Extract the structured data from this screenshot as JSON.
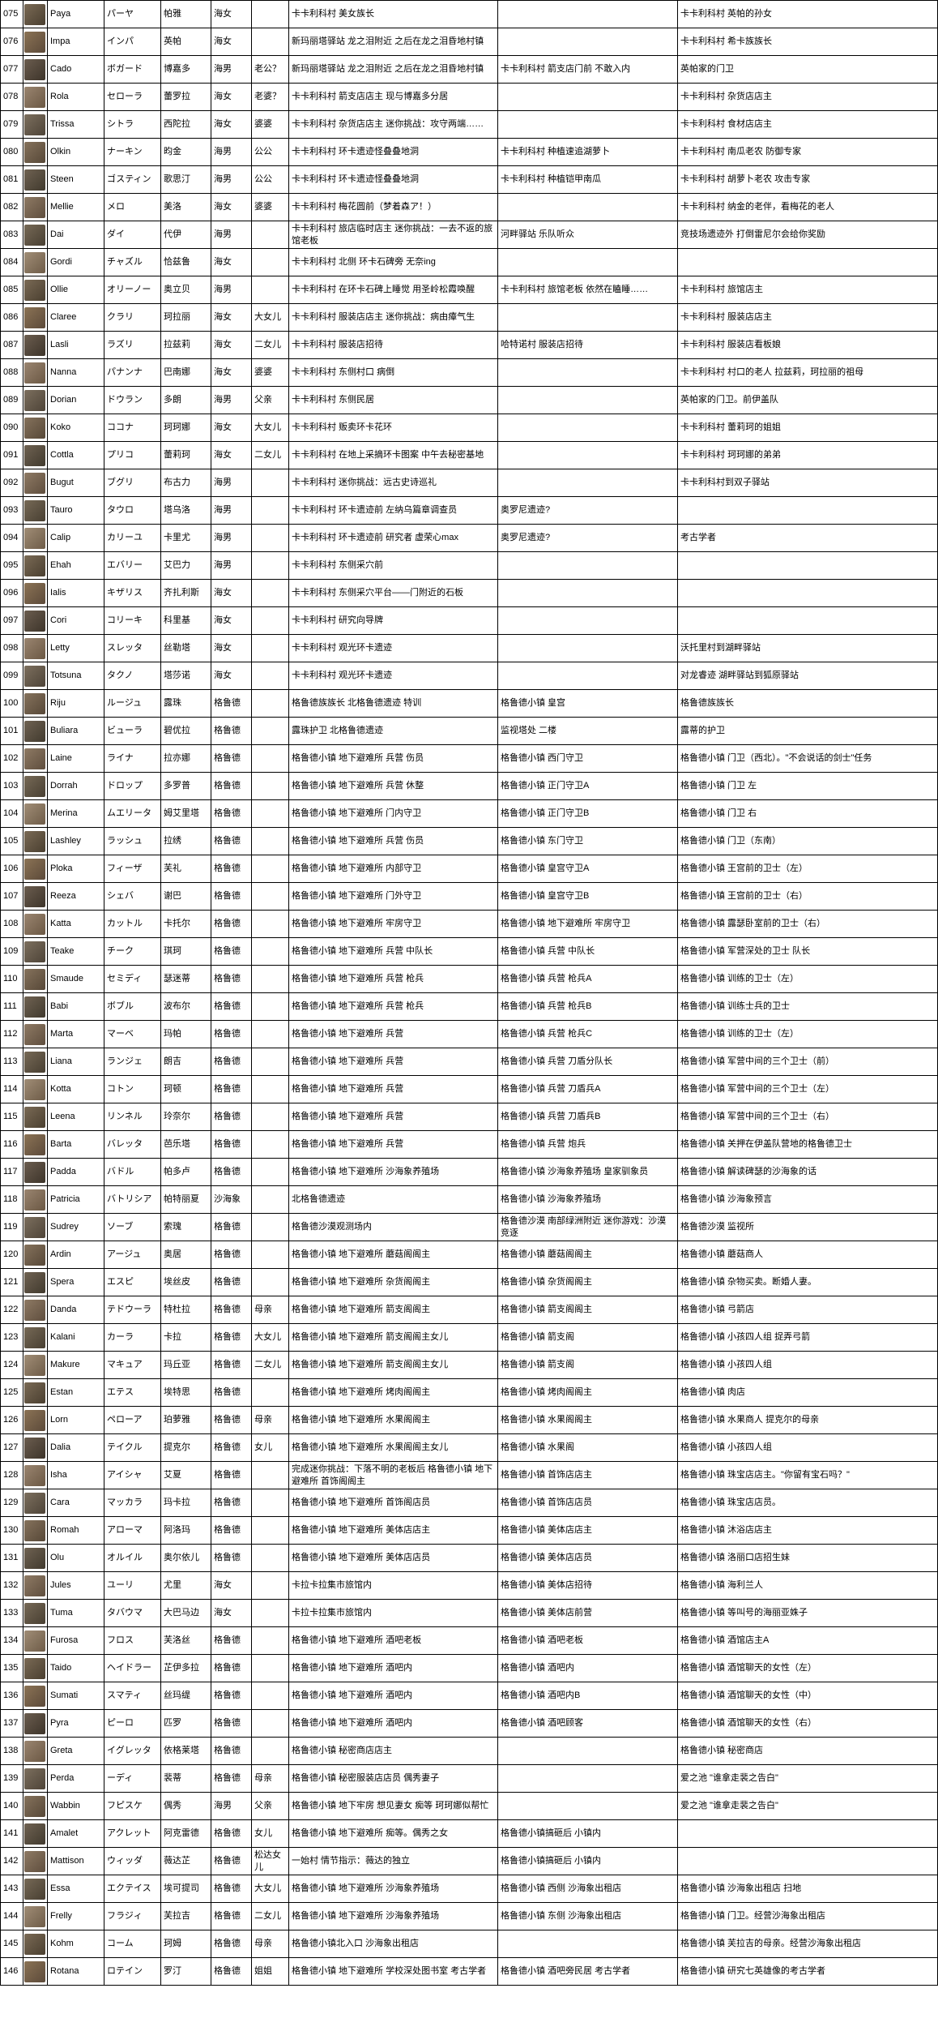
{
  "rows": [
    {
      "n": "075",
      "en": "Paya",
      "jp": "パーヤ",
      "cn": "帕雅",
      "race": "海女",
      "rel": "",
      "l1": "卡卡利科村 美女族长",
      "l2": "",
      "note": "卡卡利科村 英帕的孙女"
    },
    {
      "n": "076",
      "en": "Impa",
      "jp": "インパ",
      "cn": "英帕",
      "race": "海女",
      "rel": "",
      "l1": "新玛丽塔驿站 龙之泪附近 之后在龙之泪昏地村镇",
      "l2": "",
      "note": "卡卡利科村 希卡族族长"
    },
    {
      "n": "077",
      "en": "Cado",
      "jp": "ボガード",
      "cn": "博嘉多",
      "race": "海男",
      "rel": "老公？",
      "l1": "新玛丽塔驿站 龙之泪附近 之后在龙之泪昏地村镇",
      "l2": "卡卡利科村 箭支店门前 不敢入内",
      "note": "英帕家的门卫"
    },
    {
      "n": "078",
      "en": "Rola",
      "jp": "セローラ",
      "cn": "蕾罗拉",
      "race": "海女",
      "rel": "老婆？",
      "l1": "卡卡利科村 箭支店店主 现与博嘉多分居",
      "l2": "",
      "note": "卡卡利科村 杂货店店主"
    },
    {
      "n": "079",
      "en": "Trissa",
      "jp": "シトラ",
      "cn": "西陀拉",
      "race": "海女",
      "rel": "婆婆",
      "l1": "卡卡利科村 杂货店店主 迷你挑战：攻守两端……",
      "l2": "",
      "note": "卡卡利科村 食材店店主"
    },
    {
      "n": "080",
      "en": "Olkin",
      "jp": "ナーキン",
      "cn": "昀金",
      "race": "海男",
      "rel": "公公",
      "l1": "卡卡利科村 环卡遗迹怪叠叠地洞",
      "l2": "卡卡利科村 种植速追湖萝卜",
      "note": "卡卡利科村 南瓜老农 防御专家"
    },
    {
      "n": "081",
      "en": "Steen",
      "jp": "ゴスティン",
      "cn": "歌思汀",
      "race": "海男",
      "rel": "公公",
      "l1": "卡卡利科村 环卡遗迹怪叠叠地洞",
      "l2": "卡卡利科村 种植铠甲南瓜",
      "note": "卡卡利科村 胡萝卜老农 攻击专家"
    },
    {
      "n": "082",
      "en": "Mellie",
      "jp": "メロ",
      "cn": "美洛",
      "race": "海女",
      "rel": "婆婆",
      "l1": "卡卡利科村 梅花圆前（梦着森ア！）",
      "l2": "",
      "note": "卡卡利科村 纳金的老伴，看梅花的老人"
    },
    {
      "n": "083",
      "en": "Dai",
      "jp": "ダイ",
      "cn": "代伊",
      "race": "海男",
      "rel": "",
      "l1": "卡卡利科村 旅店临时店主 迷你挑战：一去不返的旅馆老板",
      "l2": "河畔驿站 乐队听众",
      "note": "竞技场遗迹外 打倒雷尼尔会给你奖励"
    },
    {
      "n": "084",
      "en": "Gordi",
      "jp": "チャズル",
      "cn": "恰兹鲁",
      "race": "海女",
      "rel": "",
      "l1": "卡卡利科村 北侧 环卡石碑旁 无奈ing",
      "l2": "",
      "note": ""
    },
    {
      "n": "085",
      "en": "Ollie",
      "jp": "オリーノー",
      "cn": "奥立贝",
      "race": "海男",
      "rel": "",
      "l1": "卡卡利科村 在环卡石碑上睡觉 用圣岭松霞唤醒",
      "l2": "卡卡利科村 旅馆老板 依然在瞌睡……",
      "note": "卡卡利科村 旅馆店主"
    },
    {
      "n": "086",
      "en": "Claree",
      "jp": "クラリ",
      "cn": "珂拉丽",
      "race": "海女",
      "rel": "大女儿",
      "l1": "卡卡利科村 服装店店主 迷你挑战：病由瘴气生",
      "l2": "",
      "note": "卡卡利科村 服装店店主"
    },
    {
      "n": "087",
      "en": "Lasli",
      "jp": "ラズリ",
      "cn": "拉兹莉",
      "race": "海女",
      "rel": "二女儿",
      "l1": "卡卡利科村 服装店招待",
      "l2": "哈特诺村 服装店招待",
      "note": "卡卡利科村 服装店看板娘"
    },
    {
      "n": "088",
      "en": "Nanna",
      "jp": "パナンナ",
      "cn": "巴南娜",
      "race": "海女",
      "rel": "婆婆",
      "l1": "卡卡利科村 东侧村口 病倒",
      "l2": "",
      "note": "卡卡利科村 村口的老人 拉兹莉，珂拉丽的祖母"
    },
    {
      "n": "089",
      "en": "Dorian",
      "jp": "ドウラン",
      "cn": "多朗",
      "race": "海男",
      "rel": "父亲",
      "l1": "卡卡利科村 东侧民居",
      "l2": "",
      "note": "英帕家的门卫。前伊盖队"
    },
    {
      "n": "090",
      "en": "Koko",
      "jp": "ココナ",
      "cn": "珂珂娜",
      "race": "海女",
      "rel": "大女儿",
      "l1": "卡卡利科村 贩卖环卡花环",
      "l2": "",
      "note": "卡卡利科村 蕾莉珂的姐姐"
    },
    {
      "n": "091",
      "en": "Cottla",
      "jp": "プリコ",
      "cn": "蕾莉珂",
      "race": "海女",
      "rel": "二女儿",
      "l1": "卡卡利科村 在地上采摘环卡图案 中午去秘密基地",
      "l2": "",
      "note": "卡卡利科村 珂珂娜的弟弟"
    },
    {
      "n": "092",
      "en": "Bugut",
      "jp": "ブグリ",
      "cn": "布古力",
      "race": "海男",
      "rel": "",
      "l1": "卡卡利科村 迷你挑战：远古史诗巡礼",
      "l2": "",
      "note": "卡卡利科村到双子驿站"
    },
    {
      "n": "093",
      "en": "Tauro",
      "jp": "タウロ",
      "cn": "塔乌洛",
      "race": "海男",
      "rel": "",
      "l1": "卡卡利科村 环卡遗迹前 左纳乌篇章调查员",
      "l2": "奥罗尼遗迹?",
      "note": ""
    },
    {
      "n": "094",
      "en": "Calip",
      "jp": "カリーユ",
      "cn": "卡里尤",
      "race": "海男",
      "rel": "",
      "l1": "卡卡利科村 环卡遗迹前 研究者 虚荣心max",
      "l2": "奥罗尼遗迹?",
      "note": "考古学者"
    },
    {
      "n": "095",
      "en": "Ehah",
      "jp": "エバリー",
      "cn": "艾巴力",
      "race": "海男",
      "rel": "",
      "l1": "卡卡利科村 东侧采穴前",
      "l2": "",
      "note": ""
    },
    {
      "n": "096",
      "en": "Ialis",
      "jp": "キザリス",
      "cn": "齐扎利斯",
      "race": "海女",
      "rel": "",
      "l1": "卡卡利科村 东侧采穴平台――门附近的石板",
      "l2": "",
      "note": ""
    },
    {
      "n": "097",
      "en": "Cori",
      "jp": "コリーキ",
      "cn": "科里基",
      "race": "海女",
      "rel": "",
      "l1": "卡卡利科村 研究向导牌",
      "l2": "",
      "note": ""
    },
    {
      "n": "098",
      "en": "Letty",
      "jp": "スレッタ",
      "cn": "丝勒塔",
      "race": "海女",
      "rel": "",
      "l1": "卡卡利科村 观光环卡遗迹",
      "l2": "",
      "note": "沃托里村到湖畔驿站"
    },
    {
      "n": "099",
      "en": "Totsuna",
      "jp": "タクノ",
      "cn": "塔莎诺",
      "race": "海女",
      "rel": "",
      "l1": "卡卡利科村 观光环卡遗迹",
      "l2": "",
      "note": "对龙睿迹 湖畔驿站到狐原驿站"
    },
    {
      "n": "100",
      "en": "Riju",
      "jp": "ルージュ",
      "cn": "露珠",
      "race": "格鲁德",
      "rel": "",
      "l1": "格鲁德族族长 北格鲁德遗迹 特训",
      "l2": "格鲁德小镇 皇宫",
      "note": "格鲁德族族长"
    },
    {
      "n": "101",
      "en": "Buliara",
      "jp": "ビューラ",
      "cn": "碧优拉",
      "race": "格鲁德",
      "rel": "",
      "l1": "露珠护卫 北格鲁德遗迹",
      "l2": "监视塔处 二楼",
      "note": "露蒂的护卫"
    },
    {
      "n": "102",
      "en": "Laine",
      "jp": "ライナ",
      "cn": "拉亦娜",
      "race": "格鲁德",
      "rel": "",
      "l1": "格鲁德小镇 地下避难所 兵营 伤员",
      "l2": "格鲁德小镇 西门守卫",
      "note": "格鲁德小镇 门卫（西北）。\"不会说话的剑士\"任务"
    },
    {
      "n": "103",
      "en": "Dorrah",
      "jp": "ドロップ",
      "cn": "多罗普",
      "race": "格鲁德",
      "rel": "",
      "l1": "格鲁德小镇 地下避难所 兵营 休整",
      "l2": "格鲁德小镇 正门守卫A",
      "note": "格鲁德小镇 门卫 左"
    },
    {
      "n": "104",
      "en": "Merina",
      "jp": "ムエリータ",
      "cn": "姆艾里塔",
      "race": "格鲁德",
      "rel": "",
      "l1": "格鲁德小镇 地下避难所 门内守卫",
      "l2": "格鲁德小镇 正门守卫B",
      "note": "格鲁德小镇 门卫 右"
    },
    {
      "n": "105",
      "en": "Lashley",
      "jp": "ラッシュ",
      "cn": "拉绣",
      "race": "格鲁德",
      "rel": "",
      "l1": "格鲁德小镇 地下避难所 兵营 伤员",
      "l2": "格鲁德小镇 东门守卫",
      "note": "格鲁德小镇 门卫（东南）"
    },
    {
      "n": "106",
      "en": "Ploka",
      "jp": "フィーザ",
      "cn": "芙礼",
      "race": "格鲁德",
      "rel": "",
      "l1": "格鲁德小镇 地下避难所 内部守卫",
      "l2": "格鲁德小镇 皇宫守卫A",
      "note": "格鲁德小镇 王宫前的卫士（左）"
    },
    {
      "n": "107",
      "en": "Reeza",
      "jp": "シェバ",
      "cn": "谢巴",
      "race": "格鲁德",
      "rel": "",
      "l1": "格鲁德小镇 地下避难所 门外守卫",
      "l2": "格鲁德小镇 皇宫守卫B",
      "note": "格鲁德小镇 王宫前的卫士（右）"
    },
    {
      "n": "108",
      "en": "Katta",
      "jp": "カットル",
      "cn": "卡托尔",
      "race": "格鲁德",
      "rel": "",
      "l1": "格鲁德小镇 地下避难所 牢房守卫",
      "l2": "格鲁德小镇 地下避难所 牢房守卫",
      "note": "格鲁德小镇 露瑟卧室前的卫士（右）"
    },
    {
      "n": "109",
      "en": "Teake",
      "jp": "チーク",
      "cn": "琪珂",
      "race": "格鲁德",
      "rel": "",
      "l1": "格鲁德小镇 地下避难所 兵营 中队长",
      "l2": "格鲁德小镇 兵营 中队长",
      "note": "格鲁德小镇 军营深处的卫士 队长"
    },
    {
      "n": "110",
      "en": "Smaude",
      "jp": "セミディ",
      "cn": "瑟迷蒂",
      "race": "格鲁德",
      "rel": "",
      "l1": "格鲁德小镇 地下避难所 兵营 枪兵",
      "l2": "格鲁德小镇 兵营 枪兵A",
      "note": "格鲁德小镇 训练的卫士（左）"
    },
    {
      "n": "111",
      "en": "Babi",
      "jp": "ボブル",
      "cn": "波布尔",
      "race": "格鲁德",
      "rel": "",
      "l1": "格鲁德小镇 地下避难所 兵营 枪兵",
      "l2": "格鲁德小镇 兵营 枪兵B",
      "note": "格鲁德小镇 训练士兵的卫士"
    },
    {
      "n": "112",
      "en": "Marta",
      "jp": "マーベ",
      "cn": "玛帕",
      "race": "格鲁德",
      "rel": "",
      "l1": "格鲁德小镇 地下避难所 兵营",
      "l2": "格鲁德小镇 兵营 枪兵C",
      "note": "格鲁德小镇 训练的卫士（左）"
    },
    {
      "n": "113",
      "en": "Liana",
      "jp": "ランジェ",
      "cn": "朗吉",
      "race": "格鲁德",
      "rel": "",
      "l1": "格鲁德小镇 地下避难所 兵营",
      "l2": "格鲁德小镇 兵营 刀盾分队长",
      "note": "格鲁德小镇 军营中间的三个卫士（前）"
    },
    {
      "n": "114",
      "en": "Kotta",
      "jp": "コトン",
      "cn": "珂顿",
      "race": "格鲁德",
      "rel": "",
      "l1": "格鲁德小镇 地下避难所 兵营",
      "l2": "格鲁德小镇 兵营 刀盾兵A",
      "note": "格鲁德小镇 军营中间的三个卫士（左）"
    },
    {
      "n": "115",
      "en": "Leena",
      "jp": "リンネル",
      "cn": "玲奈尔",
      "race": "格鲁德",
      "rel": "",
      "l1": "格鲁德小镇 地下避难所 兵营",
      "l2": "格鲁德小镇 兵营 刀盾兵B",
      "note": "格鲁德小镇 军营中间的三个卫士（右）"
    },
    {
      "n": "116",
      "en": "Barta",
      "jp": "バレッタ",
      "cn": "芭乐塔",
      "race": "格鲁德",
      "rel": "",
      "l1": "格鲁德小镇 地下避难所 兵营",
      "l2": "格鲁德小镇 兵营 炮兵",
      "note": "格鲁德小镇 关押在伊盖队营地的格鲁德卫士"
    },
    {
      "n": "117",
      "en": "Padda",
      "jp": "バドル",
      "cn": "帕多卢",
      "race": "格鲁德",
      "rel": "",
      "l1": "格鲁德小镇 地下避难所 沙海象养殖场",
      "l2": "格鲁德小镇 沙海象养殖场 皇家驯象员",
      "note": "格鲁德小镇 解读碑瑟的沙海象的话"
    },
    {
      "n": "118",
      "en": "Patricia",
      "jp": "バトリシア",
      "cn": "帕特丽夏",
      "race": "沙海象",
      "rel": "",
      "l1": "北格鲁德遗迹",
      "l2": "格鲁德小镇 沙海象养殖场",
      "note": "格鲁德小镇 沙海象预言"
    },
    {
      "n": "119",
      "en": "Sudrey",
      "jp": "ソーブ",
      "cn": "索瑰",
      "race": "格鲁德",
      "rel": "",
      "l1": "格鲁德沙漠观测场内",
      "l2": "格鲁德沙漠 南部绿洲附近 迷你游戏：沙漠竞逐",
      "note": "格鲁德沙漠 监视所"
    },
    {
      "n": "120",
      "en": "Ardin",
      "jp": "アージュ",
      "cn": "奥居",
      "race": "格鲁德",
      "rel": "",
      "l1": "格鲁德小镇 地下避难所 蘑菇阁阁主",
      "l2": "格鲁德小镇 蘑菇阁阁主",
      "note": "格鲁德小镇 蘑菇商人"
    },
    {
      "n": "121",
      "en": "Spera",
      "jp": "エスピ",
      "cn": "埃丝皮",
      "race": "格鲁德",
      "rel": "",
      "l1": "格鲁德小镇 地下避难所 杂货阁阁主",
      "l2": "格鲁德小镇 杂货阁阁主",
      "note": "格鲁德小镇 杂物买卖。断婚人妻。"
    },
    {
      "n": "122",
      "en": "Danda",
      "jp": "テドウーラ",
      "cn": "特杜拉",
      "race": "格鲁德",
      "rel": "母亲",
      "l1": "格鲁德小镇 地下避难所 箭支阁阁主",
      "l2": "格鲁德小镇 箭支阁阁主",
      "note": "格鲁德小镇 弓箭店"
    },
    {
      "n": "123",
      "en": "Kalani",
      "jp": "カーラ",
      "cn": "卡拉",
      "race": "格鲁德",
      "rel": "大女儿",
      "l1": "格鲁德小镇 地下避难所 箭支阁阁主女儿",
      "l2": "格鲁德小镇 箭支阁",
      "note": "格鲁德小镇 小孩四人组 捉弄弓箭"
    },
    {
      "n": "124",
      "en": "Makure",
      "jp": "マキュア",
      "cn": "玛丘亚",
      "race": "格鲁德",
      "rel": "二女儿",
      "l1": "格鲁德小镇 地下避难所 箭支阁阁主女儿",
      "l2": "格鲁德小镇 箭支阁",
      "note": "格鲁德小镇 小孩四人组"
    },
    {
      "n": "125",
      "en": "Estan",
      "jp": "エテス",
      "cn": "埃特思",
      "race": "格鲁德",
      "rel": "",
      "l1": "格鲁德小镇 地下避难所 烤肉阁阁主",
      "l2": "格鲁德小镇 烤肉阁阁主",
      "note": "格鲁德小镇 肉店"
    },
    {
      "n": "126",
      "en": "Lorn",
      "jp": "ペローア",
      "cn": "珀萝雅",
      "race": "格鲁德",
      "rel": "母亲",
      "l1": "格鲁德小镇 地下避难所 水果阁阁主",
      "l2": "格鲁德小镇 水果阁阁主",
      "note": "格鲁德小镇 水果商人 提克尔的母亲"
    },
    {
      "n": "127",
      "en": "Dalia",
      "jp": "テイクル",
      "cn": "提克尔",
      "race": "格鲁德",
      "rel": "女儿",
      "l1": "格鲁德小镇 地下避难所 水果阁阁主女儿",
      "l2": "格鲁德小镇 水果阁",
      "note": "格鲁德小镇 小孩四人组"
    },
    {
      "n": "128",
      "en": "Isha",
      "jp": "アイシャ",
      "cn": "艾夏",
      "race": "格鲁德",
      "rel": "",
      "l1": "完成迷你挑战：下落不明的老板后 格鲁德小镇 地下避难所 首饰阁阁主",
      "l2": "格鲁德小镇 首饰店店主",
      "note": "格鲁德小镇 珠宝店店主。\"你留有宝石吗？\""
    },
    {
      "n": "129",
      "en": "Cara",
      "jp": "マッカラ",
      "cn": "玛卡拉",
      "race": "格鲁德",
      "rel": "",
      "l1": "格鲁德小镇 地下避难所 首饰阁店员",
      "l2": "格鲁德小镇 首饰店店员",
      "note": "格鲁德小镇 珠宝店店员。"
    },
    {
      "n": "130",
      "en": "Romah",
      "jp": "アローマ",
      "cn": "阿洛玛",
      "race": "格鲁德",
      "rel": "",
      "l1": "格鲁德小镇 地下避难所 美体店店主",
      "l2": "格鲁德小镇 美体店店主",
      "note": "格鲁德小镇 沐浴店店主"
    },
    {
      "n": "131",
      "en": "Olu",
      "jp": "オルイル",
      "cn": "奥尔依儿",
      "race": "格鲁德",
      "rel": "",
      "l1": "格鲁德小镇 地下避难所 美体店店员",
      "l2": "格鲁德小镇 美体店店员",
      "note": "格鲁德小镇 洛丽口店招生妹"
    },
    {
      "n": "132",
      "en": "Jules",
      "jp": "ユーリ",
      "cn": "尤里",
      "race": "海女",
      "rel": "",
      "l1": "卡拉卡拉集市旅馆内",
      "l2": "格鲁德小镇 美体店招待",
      "note": "格鲁德小镇 海利兰人"
    },
    {
      "n": "133",
      "en": "Tuma",
      "jp": "タバウマ",
      "cn": "大巴马边",
      "race": "海女",
      "rel": "",
      "l1": "卡拉卡拉集市旅馆内",
      "l2": "格鲁德小镇 美体店前营",
      "note": "格鲁德小镇 等叫号的海丽亚姝子"
    },
    {
      "n": "134",
      "en": "Furosa",
      "jp": "フロス",
      "cn": "芙洛丝",
      "race": "格鲁德",
      "rel": "",
      "l1": "格鲁德小镇 地下避难所 酒吧老板",
      "l2": "格鲁德小镇 酒吧老板",
      "note": "格鲁德小镇 酒馆店主A"
    },
    {
      "n": "135",
      "en": "Taido",
      "jp": "ヘイドラー",
      "cn": "芷伊多拉",
      "race": "格鲁德",
      "rel": "",
      "l1": "格鲁德小镇 地下避难所 酒吧内",
      "l2": "格鲁德小镇 酒吧内",
      "note": "格鲁德小镇 酒馆聊天的女性（左）"
    },
    {
      "n": "136",
      "en": "Sumati",
      "jp": "スマティ",
      "cn": "丝玛缇",
      "race": "格鲁德",
      "rel": "",
      "l1": "格鲁德小镇 地下避难所 酒吧内",
      "l2": "格鲁德小镇 酒吧内B",
      "note": "格鲁德小镇 酒馆聊天的女性（中）"
    },
    {
      "n": "137",
      "en": "Pyra",
      "jp": "ピーロ",
      "cn": "匹罗",
      "race": "格鲁德",
      "rel": "",
      "l1": "格鲁德小镇 地下避难所 酒吧内",
      "l2": "格鲁德小镇 酒吧顾客",
      "note": "格鲁德小镇 酒馆聊天的女性（右）"
    },
    {
      "n": "138",
      "en": "Greta",
      "jp": "イグレッタ",
      "cn": "依格莱塔",
      "race": "格鲁德",
      "rel": "",
      "l1": "格鲁德小镇 秘密商店店主",
      "l2": "",
      "note": "格鲁德小镇 秘密商店"
    },
    {
      "n": "139",
      "en": "Perda",
      "jp": "ーディ",
      "cn": "裴蒂",
      "race": "格鲁德",
      "rel": "母亲",
      "l1": "格鲁德小镇 秘密服装店店员 偶秀妻子",
      "l2": "",
      "note": "爱之池 \"谁拿走裴之告白\""
    },
    {
      "n": "140",
      "en": "Wabbin",
      "jp": "フピスケ",
      "cn": "偶秀",
      "race": "海男",
      "rel": "父亲",
      "l1": "格鲁德小镇 地下牢房 想见妻女 痴等 珂珂娜似帮忙",
      "l2": "",
      "note": "爱之池 \"谁拿走裴之告白\""
    },
    {
      "n": "141",
      "en": "Amalet",
      "jp": "アクレット",
      "cn": "阿克雷德",
      "race": "格鲁德",
      "rel": "女儿",
      "l1": "格鲁德小镇 地下避难所 痴等。偶秀之女",
      "l2": "格鲁德小镇搞砸后 小镇内",
      "note": ""
    },
    {
      "n": "142",
      "en": "Mattison",
      "jp": "ウィッダ",
      "cn": "薇达芷",
      "race": "格鲁德",
      "rel": "松达女儿",
      "l1": "一始村 情节指示：薇达的独立",
      "l2": "格鲁德小镇搞砸后 小镇内",
      "note": ""
    },
    {
      "n": "143",
      "en": "Essa",
      "jp": "エクテイス",
      "cn": "埃可提司",
      "race": "格鲁德",
      "rel": "大女儿",
      "l1": "格鲁德小镇 地下避难所 沙海象养殖场",
      "l2": "格鲁德小镇 西侧 沙海象出租店",
      "note": "格鲁德小镇 沙海象出租店 扫地"
    },
    {
      "n": "144",
      "en": "Frelly",
      "jp": "フラジィ",
      "cn": "芙拉吉",
      "race": "格鲁德",
      "rel": "二女儿",
      "l1": "格鲁德小镇 地下避难所 沙海象养殖场",
      "l2": "格鲁德小镇 东侧 沙海象出租店",
      "note": "格鲁德小镇 门卫。经营沙海象出租店"
    },
    {
      "n": "145",
      "en": "Kohm",
      "jp": "コーム",
      "cn": "珂姆",
      "race": "格鲁德",
      "rel": "母亲",
      "l1": "格鲁德小镇北入口 沙海象出租店",
      "l2": "",
      "note": "格鲁德小镇 芙拉吉的母亲。经营沙海象出租店"
    },
    {
      "n": "146",
      "en": "Rotana",
      "jp": "ロテイン",
      "cn": "罗汀",
      "race": "格鲁德",
      "rel": "姐姐",
      "l1": "格鲁德小镇 地下避难所 学校深处图书室 考古学者",
      "l2": "格鲁德小镇 酒吧旁民居 考古学者",
      "note": "格鲁德小镇 研究七英雄像的考古学者"
    }
  ]
}
